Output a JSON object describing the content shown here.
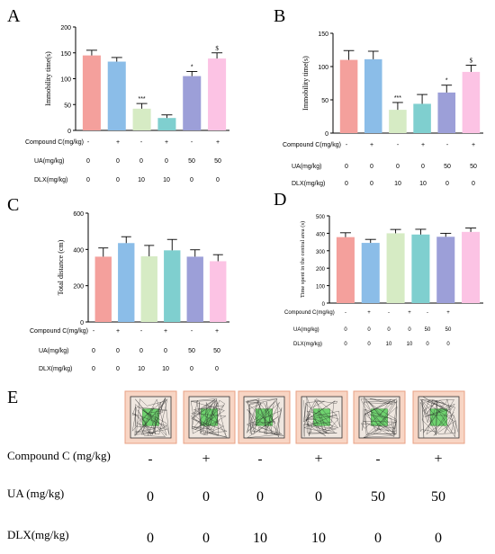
{
  "panel_letters": [
    "A",
    "B",
    "C",
    "D",
    "E"
  ],
  "colors": [
    "#f4a09c",
    "#8bbde8",
    "#d6ebc4",
    "#7fcfcf",
    "#9c9fd8",
    "#fcc3e4"
  ],
  "group_rows": [
    {
      "label": "Compound C(mg/kg)",
      "values": [
        "-",
        "+",
        "-",
        "+",
        "-",
        "+"
      ]
    },
    {
      "label": "UA(mg/kg)",
      "values": [
        "0",
        "0",
        "0",
        "0",
        "50",
        "50"
      ]
    },
    {
      "label": "DLX(mg/kg)",
      "values": [
        "0",
        "0",
        "10",
        "10",
        "0",
        "0"
      ]
    }
  ],
  "chart_data": [
    {
      "panel": "A",
      "type": "bar",
      "ylabel": "Immobility time(s)",
      "ylim": [
        0,
        200
      ],
      "yticks": [
        "0",
        "50",
        "100",
        "150",
        "200"
      ],
      "values": [
        145,
        133,
        42,
        24,
        105,
        139
      ],
      "errors": [
        10,
        8,
        10,
        6,
        9,
        11
      ],
      "annotations": [
        "",
        "",
        "***",
        "",
        "*",
        "$"
      ]
    },
    {
      "panel": "B",
      "type": "bar",
      "ylabel": "Immobility time(s)",
      "ylim": [
        0,
        150
      ],
      "yticks": [
        "0",
        "50",
        "100",
        "150"
      ],
      "values": [
        110,
        111,
        35,
        44,
        61,
        92
      ],
      "errors": [
        14,
        12,
        11,
        14,
        11,
        10
      ],
      "annotations": [
        "",
        "",
        "***",
        "",
        "*",
        "$"
      ]
    },
    {
      "panel": "C",
      "type": "bar",
      "ylabel": "Total distance (cm)",
      "ylim": [
        0,
        600
      ],
      "yticks": [
        "0",
        "200",
        "400",
        "600"
      ],
      "values": [
        360,
        435,
        362,
        395,
        360,
        335
      ],
      "errors": [
        48,
        35,
        60,
        60,
        38,
        36
      ],
      "annotations": [
        "",
        "",
        "",
        "",
        "",
        ""
      ]
    },
    {
      "panel": "D",
      "type": "bar",
      "ylabel": "Time spent in the central area (s)",
      "ylim": [
        0,
        500
      ],
      "yticks": [
        "0",
        "100",
        "200",
        "300",
        "400",
        "500"
      ],
      "values": [
        378,
        345,
        400,
        393,
        380,
        408
      ],
      "errors": [
        25,
        20,
        22,
        30,
        20,
        22
      ],
      "annotations": [
        "",
        "",
        "",
        "",
        "",
        ""
      ]
    }
  ],
  "panel_E": {
    "letter": "E",
    "rows": [
      {
        "label": "Compound C (mg/kg)",
        "values": [
          "-",
          "+",
          "-",
          "+",
          "-",
          "+"
        ]
      },
      {
        "label": "UA (mg/kg)",
        "values": [
          "0",
          "0",
          "0",
          "0",
          "50",
          "50"
        ]
      },
      {
        "label": "DLX(mg/kg)",
        "values": [
          "0",
          "0",
          "10",
          "10",
          "0",
          "0"
        ]
      }
    ]
  }
}
